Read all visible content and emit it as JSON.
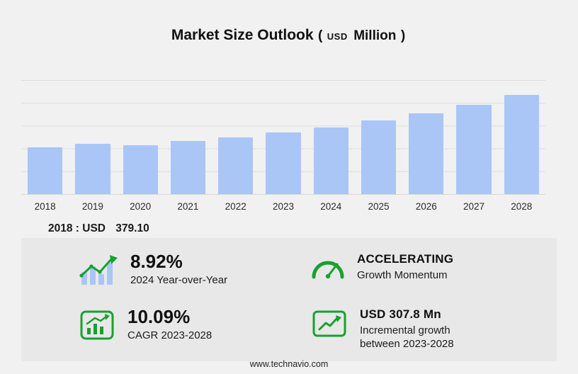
{
  "title": {
    "main": "Market Size Outlook",
    "paren_open": "(",
    "currency": "USD",
    "unit": "Million",
    "paren_close": ")"
  },
  "chart_data": {
    "type": "bar",
    "title": "Market Size Outlook (USD Million)",
    "categories": [
      "2018",
      "2019",
      "2020",
      "2021",
      "2022",
      "2023",
      "2024",
      "2025",
      "2026",
      "2027",
      "2028"
    ],
    "values": [
      379.1,
      408,
      397,
      430,
      459,
      498.6,
      543.1,
      597,
      657,
      723,
      806.4
    ],
    "xlabel": "",
    "ylabel": "",
    "ylim": [
      0,
      900
    ],
    "grid": "horizontal",
    "legend": "none",
    "bar_color": "#a9c6f7"
  },
  "annotation": {
    "label": "2018 : USD",
    "value": "379.10"
  },
  "stats": {
    "yoy": {
      "icon": "yoy-growth-icon",
      "value": "8.92%",
      "label": "2024 Year-over-Year"
    },
    "momentum": {
      "icon": "speedometer-icon",
      "value": "ACCELERATING",
      "label": "Growth Momentum"
    },
    "cagr": {
      "icon": "cagr-chart-icon",
      "value": "10.09%",
      "label": "CAGR 2023-2028"
    },
    "incremental": {
      "icon": "incremental-growth-icon",
      "value": "USD 307.8 Mn",
      "label": "Incremental growth between 2023-2028"
    }
  },
  "footer": {
    "url": "www.technavio.com"
  },
  "colors": {
    "background": "#f1f1f1",
    "panel": "#e8e8e9",
    "bar": "#a9c6f7",
    "icon_green": "#18a12f",
    "text": "#141414"
  }
}
